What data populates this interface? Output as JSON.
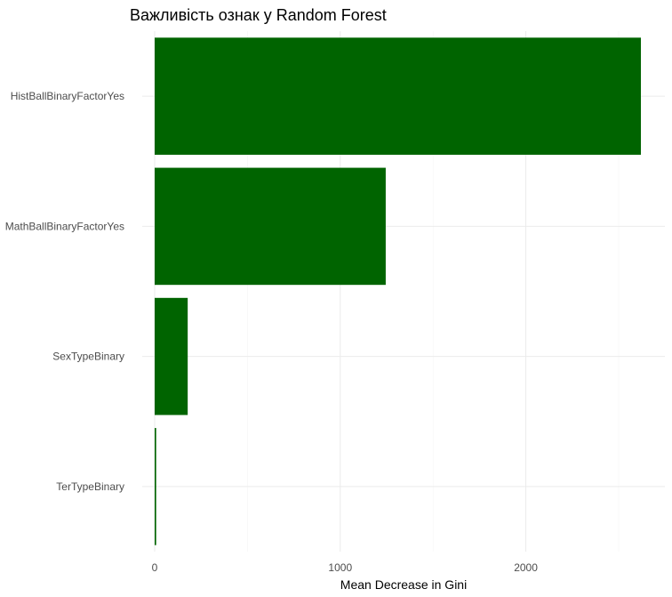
{
  "chart_data": {
    "type": "bar",
    "orientation": "horizontal",
    "title": "Важливість ознак у Random Forest",
    "xlabel": "Mean Decrease in Gini",
    "ylabel": "",
    "categories": [
      "HistBallBinaryFactorYes",
      "MathBallBinaryFactorYes",
      "SexTypeBinary",
      "TerTypeBinary"
    ],
    "values": [
      2620,
      1245,
      178,
      8
    ],
    "xlim": [
      0,
      2620
    ],
    "xticks": [
      0,
      1000,
      2000
    ],
    "bar_color": "#006400",
    "grid": true,
    "legend": "none"
  }
}
